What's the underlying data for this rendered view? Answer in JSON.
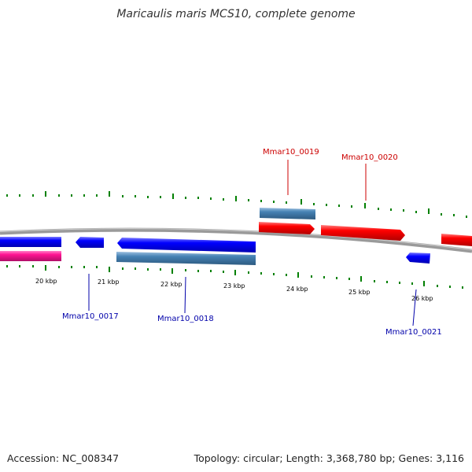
{
  "title": "Maricaulis maris MCS10, complete genome",
  "footer": {
    "accession": "Accession: NC_008347",
    "summary": "Topology: circular; Length: 3,368,780 bp; Genes: 3,116"
  },
  "ticks": [
    "20 kbp",
    "21 kbp",
    "22 kbp",
    "23 kbp",
    "24 kbp",
    "25 kbp",
    "26 kbp"
  ],
  "labels": {
    "g17": "Mmar10_0017",
    "g18": "Mmar10_0018",
    "g19": "Mmar10_0019",
    "g20": "Mmar10_0020",
    "g21": "Mmar10_0021"
  },
  "colors": {
    "forward_cds": "#ff0000",
    "reverse_cds": "#0000ff",
    "rna": "#4682b4",
    "other": "#ff1493",
    "ticks": "#008000",
    "backbone": "#808080",
    "forward_label": "#cc0000",
    "reverse_label": "#0000aa"
  }
}
